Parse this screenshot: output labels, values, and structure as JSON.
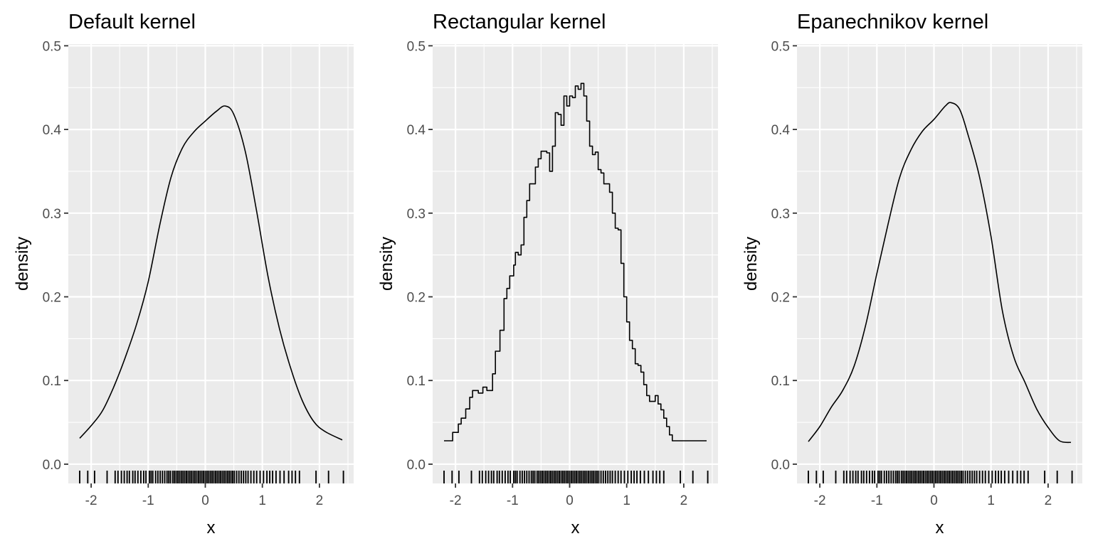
{
  "chart_data": [
    {
      "type": "line",
      "title": "Default kernel",
      "xlabel": "x",
      "ylabel": "density",
      "xlim": [
        -2.4,
        2.6
      ],
      "ylim": [
        -0.023,
        0.502
      ],
      "xticks": [
        -2,
        -1,
        0,
        1,
        2
      ],
      "xticklabels": [
        "-2",
        "-1",
        "0",
        "1",
        "2"
      ],
      "yticks": [
        0.0,
        0.1,
        0.2,
        0.3,
        0.4,
        0.5
      ],
      "yticklabels": [
        "0.0",
        "0.1",
        "0.2",
        "0.3",
        "0.4",
        "0.5"
      ],
      "grid": true,
      "series": [
        {
          "x": [
            -2.2,
            -2.0,
            -1.8,
            -1.6,
            -1.4,
            -1.2,
            -1.0,
            -0.8,
            -0.6,
            -0.4,
            -0.2,
            0.0,
            0.2,
            0.35,
            0.5,
            0.7,
            0.9,
            1.1,
            1.3,
            1.5,
            1.7,
            1.9,
            2.1,
            2.4
          ],
          "y": [
            0.031,
            0.046,
            0.064,
            0.093,
            0.128,
            0.168,
            0.218,
            0.285,
            0.343,
            0.378,
            0.397,
            0.41,
            0.422,
            0.428,
            0.418,
            0.374,
            0.302,
            0.224,
            0.162,
            0.114,
            0.076,
            0.051,
            0.039,
            0.029
          ]
        }
      ]
    },
    {
      "type": "line",
      "title": "Rectangular kernel",
      "xlabel": "x",
      "ylabel": "density",
      "xlim": [
        -2.4,
        2.6
      ],
      "ylim": [
        -0.023,
        0.502
      ],
      "xticks": [
        -2,
        -1,
        0,
        1,
        2
      ],
      "xticklabels": [
        "-2",
        "-1",
        "0",
        "1",
        "2"
      ],
      "yticks": [
        0.0,
        0.1,
        0.2,
        0.3,
        0.4,
        0.5
      ],
      "yticklabels": [
        "0.0",
        "0.1",
        "0.2",
        "0.3",
        "0.4",
        "0.5"
      ],
      "grid": true,
      "series": [
        {
          "x": [
            -2.2,
            -2.07,
            -2.05,
            -1.95,
            -1.9,
            -1.82,
            -1.75,
            -1.7,
            -1.6,
            -1.52,
            -1.45,
            -1.35,
            -1.3,
            -1.22,
            -1.15,
            -1.1,
            -1.05,
            -0.98,
            -0.95,
            -0.9,
            -0.85,
            -0.8,
            -0.75,
            -0.7,
            -0.6,
            -0.55,
            -0.5,
            -0.4,
            -0.35,
            -0.3,
            -0.25,
            -0.2,
            -0.15,
            -0.1,
            -0.05,
            0.0,
            0.05,
            0.1,
            0.15,
            0.2,
            0.25,
            0.3,
            0.35,
            0.4,
            0.45,
            0.5,
            0.55,
            0.6,
            0.7,
            0.75,
            0.8,
            0.85,
            0.9,
            0.95,
            1.0,
            1.05,
            1.1,
            1.15,
            1.2,
            1.25,
            1.3,
            1.35,
            1.4,
            1.5,
            1.55,
            1.6,
            1.65,
            1.7,
            1.75,
            1.8,
            1.85,
            1.9,
            1.95,
            2.0,
            2.05,
            2.1,
            2.15,
            2.4
          ],
          "y": [
            0.028,
            0.028,
            0.038,
            0.048,
            0.055,
            0.066,
            0.08,
            0.088,
            0.085,
            0.092,
            0.088,
            0.108,
            0.135,
            0.16,
            0.198,
            0.21,
            0.225,
            0.238,
            0.253,
            0.25,
            0.262,
            0.295,
            0.315,
            0.335,
            0.355,
            0.365,
            0.374,
            0.372,
            0.35,
            0.38,
            0.42,
            0.418,
            0.405,
            0.44,
            0.428,
            0.44,
            0.438,
            0.452,
            0.448,
            0.455,
            0.44,
            0.41,
            0.38,
            0.37,
            0.373,
            0.352,
            0.348,
            0.335,
            0.325,
            0.3,
            0.282,
            0.28,
            0.24,
            0.2,
            0.17,
            0.148,
            0.138,
            0.12,
            0.118,
            0.11,
            0.095,
            0.082,
            0.075,
            0.082,
            0.072,
            0.065,
            0.055,
            0.045,
            0.035,
            0.028,
            0.028,
            0.028,
            0.028,
            0.028,
            0.028,
            0.028,
            0.028,
            0.028
          ],
          "shape": "step"
        }
      ]
    },
    {
      "type": "line",
      "title": "Epanechnikov kernel",
      "xlabel": "x",
      "ylabel": "density",
      "xlim": [
        -2.4,
        2.6
      ],
      "ylim": [
        -0.023,
        0.502
      ],
      "xticks": [
        -2,
        -1,
        0,
        1,
        2
      ],
      "xticklabels": [
        "-2",
        "-1",
        "0",
        "1",
        "2"
      ],
      "yticks": [
        0.0,
        0.1,
        0.2,
        0.3,
        0.4,
        0.5
      ],
      "yticklabels": [
        "0.0",
        "0.1",
        "0.2",
        "0.3",
        "0.4",
        "0.5"
      ],
      "grid": true,
      "series": [
        {
          "x": [
            -2.2,
            -2.0,
            -1.8,
            -1.6,
            -1.4,
            -1.2,
            -1.0,
            -0.8,
            -0.6,
            -0.4,
            -0.2,
            0.0,
            0.2,
            0.3,
            0.45,
            0.6,
            0.8,
            1.0,
            1.2,
            1.4,
            1.6,
            1.8,
            2.0,
            2.2,
            2.4
          ],
          "y": [
            0.027,
            0.045,
            0.068,
            0.088,
            0.117,
            0.165,
            0.228,
            0.288,
            0.343,
            0.376,
            0.398,
            0.412,
            0.428,
            0.432,
            0.424,
            0.393,
            0.343,
            0.272,
            0.183,
            0.128,
            0.097,
            0.066,
            0.044,
            0.028,
            0.026
          ]
        }
      ]
    }
  ],
  "rug": [
    -2.2,
    -2.06,
    -1.94,
    -1.72,
    -1.58,
    -1.53,
    -1.47,
    -1.42,
    -1.37,
    -1.33,
    -1.27,
    -1.23,
    -1.18,
    -1.13,
    -1.08,
    -1.04,
    -0.98,
    -0.95,
    -0.92,
    -0.87,
    -0.83,
    -0.79,
    -0.75,
    -0.71,
    -0.67,
    -0.64,
    -0.61,
    -0.57,
    -0.54,
    -0.51,
    -0.48,
    -0.45,
    -0.42,
    -0.39,
    -0.36,
    -0.33,
    -0.3,
    -0.27,
    -0.24,
    -0.21,
    -0.18,
    -0.15,
    -0.12,
    -0.09,
    -0.06,
    -0.03,
    0.0,
    0.03,
    0.06,
    0.09,
    0.12,
    0.15,
    0.18,
    0.21,
    0.24,
    0.27,
    0.3,
    0.33,
    0.36,
    0.39,
    0.42,
    0.45,
    0.48,
    0.51,
    0.55,
    0.59,
    0.63,
    0.67,
    0.71,
    0.75,
    0.8,
    0.85,
    0.9,
    0.96,
    1.02,
    1.08,
    1.13,
    1.18,
    1.24,
    1.31,
    1.38,
    1.46,
    1.52,
    1.58,
    1.65,
    1.94,
    2.16,
    2.42
  ]
}
